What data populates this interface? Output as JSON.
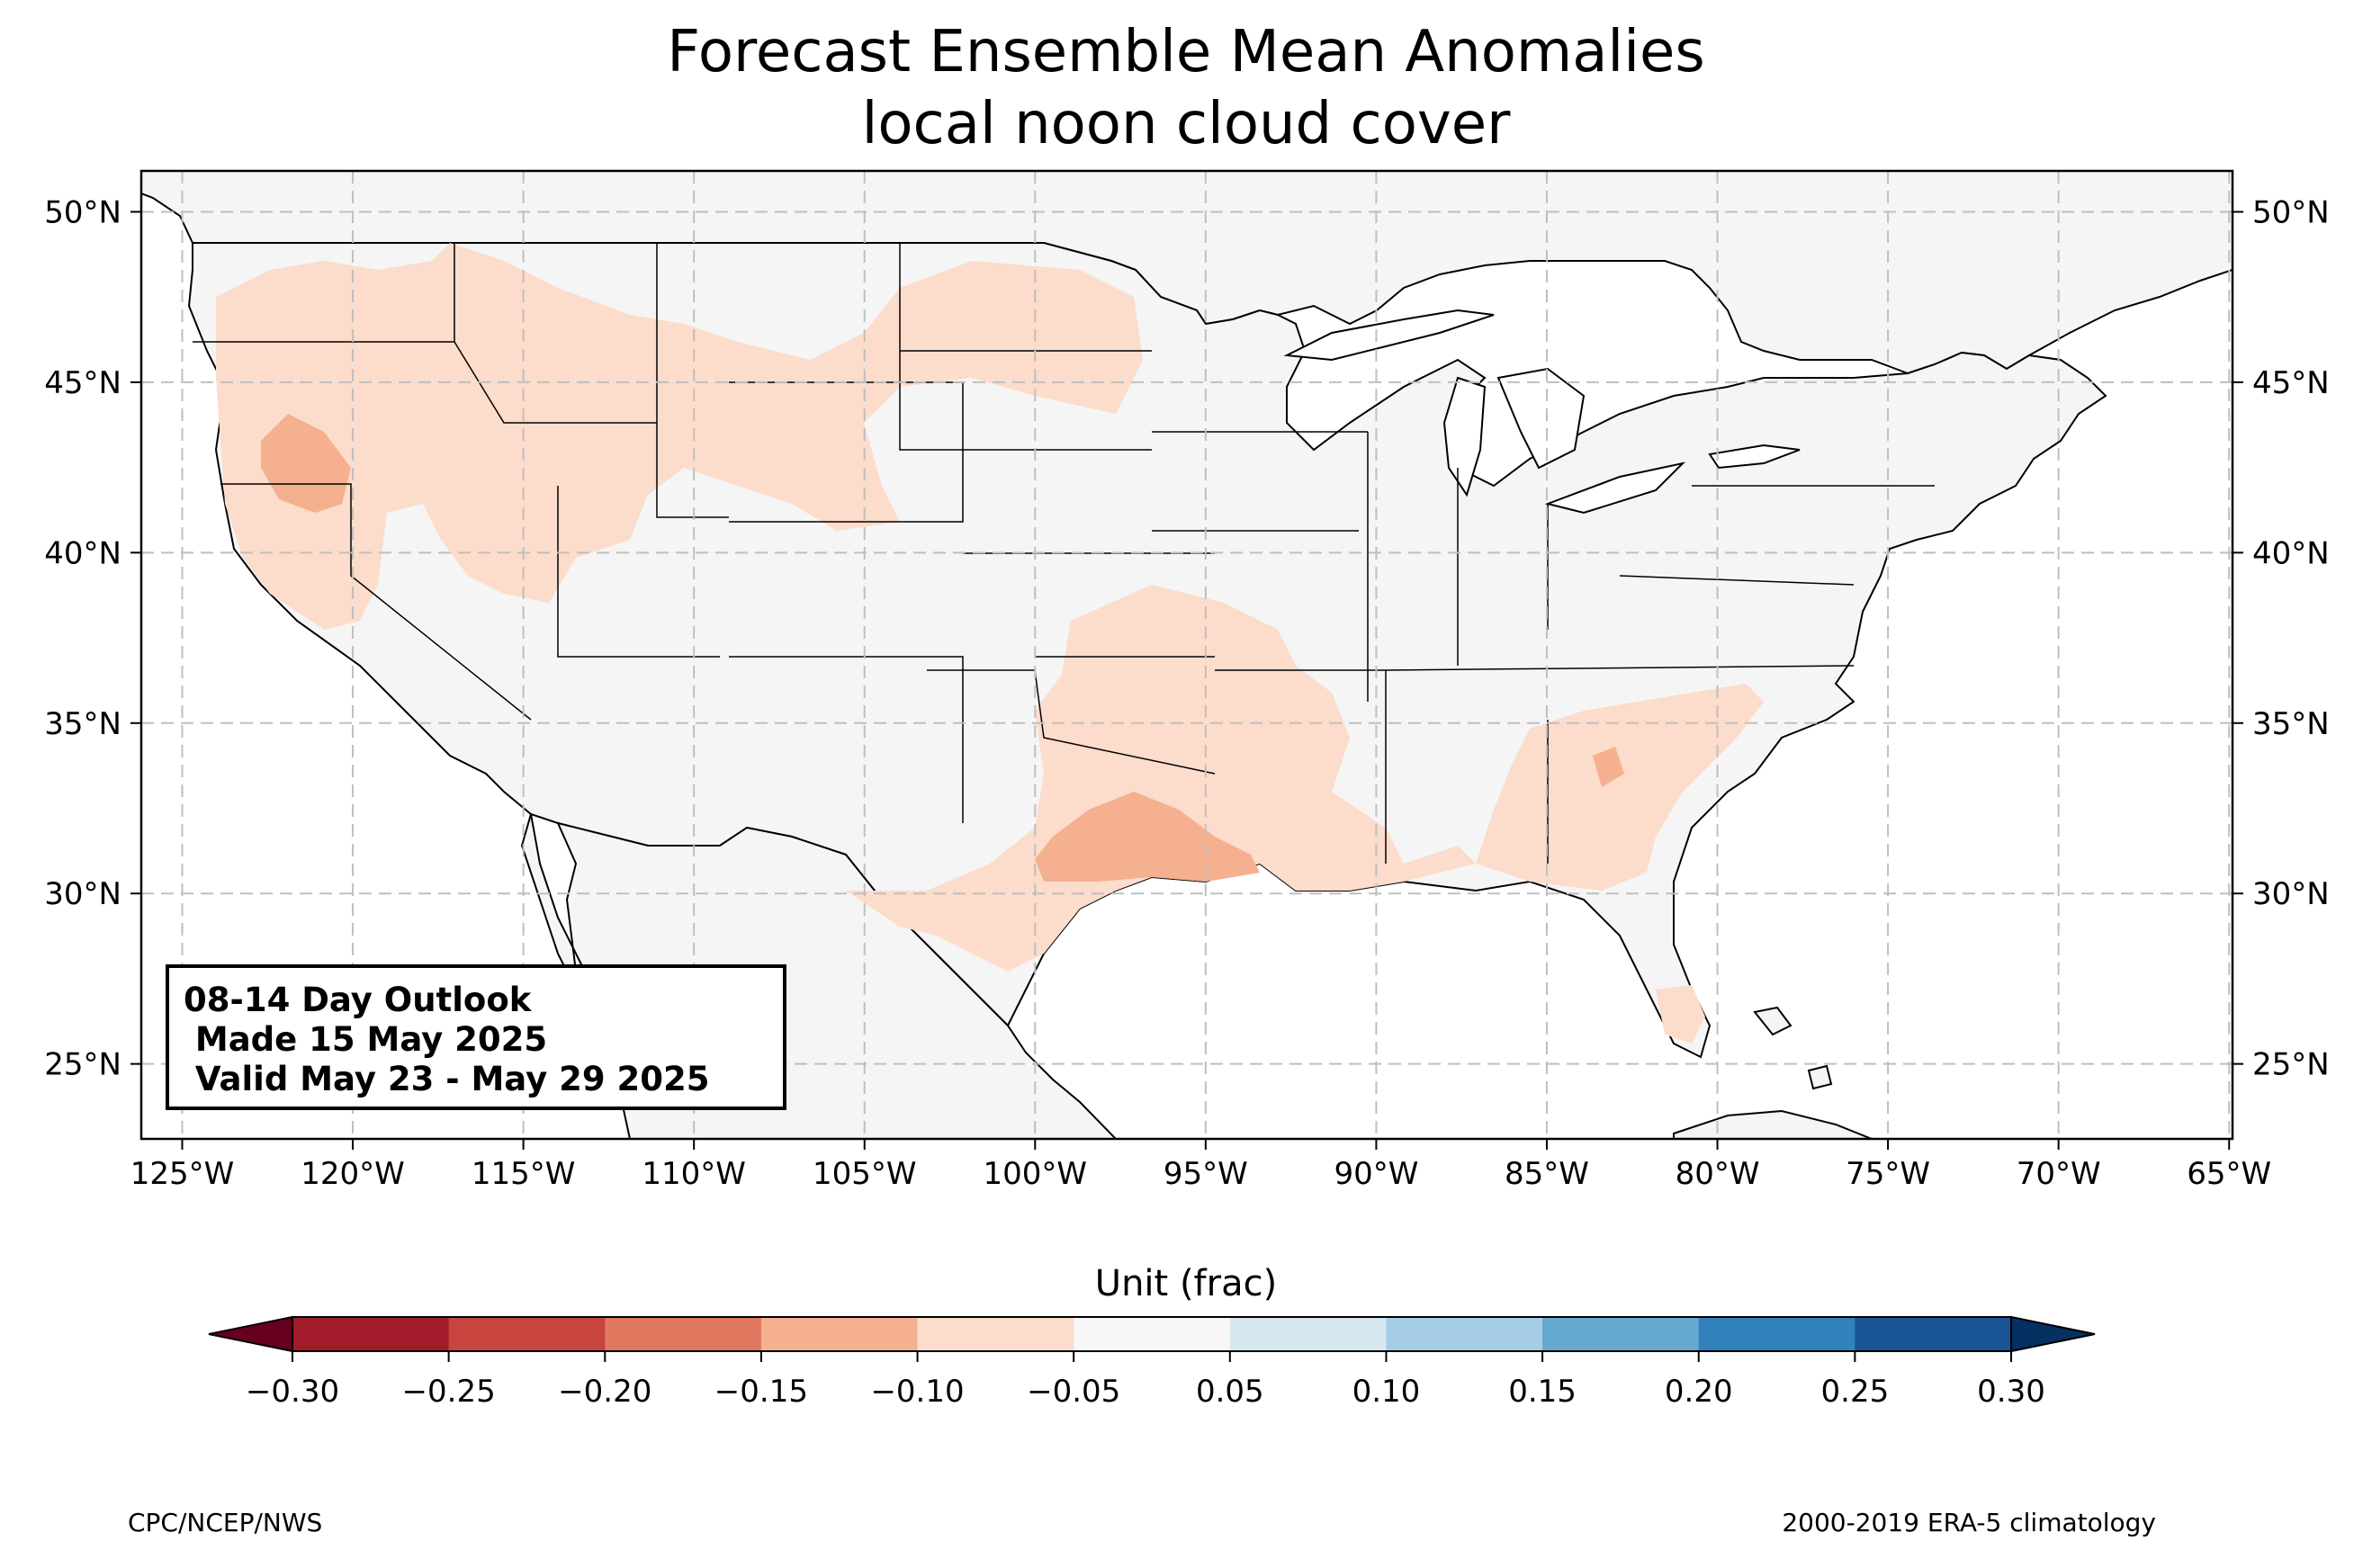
{
  "title": {
    "line1": "Forecast Ensemble Mean Anomalies",
    "line2": "local noon cloud cover"
  },
  "map": {
    "lon_range": [
      -126.2,
      -64.9
    ],
    "lat_range": [
      22.8,
      51.2
    ],
    "lon_ticks": [
      {
        "value": -125,
        "label": "125°W"
      },
      {
        "value": -120,
        "label": "120°W"
      },
      {
        "value": -115,
        "label": "115°W"
      },
      {
        "value": -110,
        "label": "110°W"
      },
      {
        "value": -105,
        "label": "105°W"
      },
      {
        "value": -100,
        "label": "100°W"
      },
      {
        "value": -95,
        "label": "95°W"
      },
      {
        "value": -90,
        "label": "90°W"
      },
      {
        "value": -85,
        "label": "85°W"
      },
      {
        "value": -80,
        "label": "80°W"
      },
      {
        "value": -75,
        "label": "75°W"
      },
      {
        "value": -70,
        "label": "70°W"
      },
      {
        "value": -65,
        "label": "65°W"
      }
    ],
    "lat_ticks": [
      {
        "value": 50,
        "label": "50°N"
      },
      {
        "value": 45,
        "label": "45°N"
      },
      {
        "value": 40,
        "label": "40°N"
      },
      {
        "value": 35,
        "label": "35°N"
      },
      {
        "value": 30,
        "label": "30°N"
      },
      {
        "value": 25,
        "label": "25°N"
      }
    ],
    "anomaly_regions": [
      {
        "region": "Pacific Northwest / Great Basin",
        "level": "-0.10 to -0.05"
      },
      {
        "region": "NE California / S Oregon",
        "level": "-0.15 to -0.10"
      },
      {
        "region": "Montana / Wyoming",
        "level": "-0.10 to -0.05"
      },
      {
        "region": "South-Central Plains / Texas",
        "level": "-0.10 to -0.05"
      },
      {
        "region": "Central Texas",
        "level": "-0.15 to -0.10"
      },
      {
        "region": "Gulf Coast / Southeast",
        "level": "-0.10 to -0.05"
      },
      {
        "region": "South Florida",
        "level": "-0.10 to -0.05"
      }
    ]
  },
  "outlook": {
    "line1": "08-14 Day Outlook",
    "line2": " Made 15 May 2025",
    "line3": " Valid May 23 - May 29 2025"
  },
  "colorbar": {
    "label": "Unit (frac)",
    "ticks": [
      "−0.30",
      "−0.25",
      "−0.20",
      "−0.15",
      "−0.10",
      "−0.05",
      "0.05",
      "0.10",
      "0.15",
      "0.20",
      "0.25",
      "0.30"
    ],
    "colors": [
      "#a11b2b",
      "#c8443f",
      "#e0795f",
      "#f4b08f",
      "#fcdcca",
      "#f7f7f7",
      "#d6e7f1",
      "#a5cde3",
      "#65a8d0",
      "#3181bd",
      "#1a5596"
    ],
    "under_color": "#67001f",
    "over_color": "#053061"
  },
  "footer": {
    "left": "CPC/NCEP/NWS",
    "right": "2000-2019 ERA-5 climatology"
  },
  "colors": {
    "land": "#f5f5f5",
    "anomaly_light": "#fcdcca",
    "anomaly_medium": "#f4b08f"
  }
}
